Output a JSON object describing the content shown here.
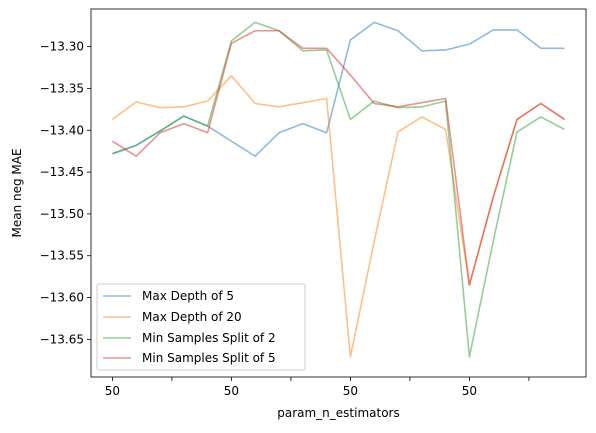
{
  "chart_data": {
    "type": "line",
    "xlabel": "param_n_estimators",
    "ylabel": "Mean neg MAE",
    "x": [
      0,
      1,
      2,
      3,
      4,
      5,
      6,
      7,
      8,
      9,
      10,
      11,
      12,
      13,
      14,
      15,
      16,
      17,
      18,
      19
    ],
    "xlim": [
      -0.9,
      19.9
    ],
    "xticks": [
      {
        "x": 0,
        "label": "50"
      },
      {
        "x": 2.5,
        "label": ""
      },
      {
        "x": 5,
        "label": "50"
      },
      {
        "x": 7.5,
        "label": ""
      },
      {
        "x": 10,
        "label": "50"
      },
      {
        "x": 12.5,
        "label": ""
      },
      {
        "x": 15,
        "label": "50"
      },
      {
        "x": 17.5,
        "label": ""
      }
    ],
    "ylim": [
      -13.695,
      -13.255
    ],
    "yticks": [
      -13.3,
      -13.35,
      -13.4,
      -13.45,
      -13.5,
      -13.55,
      -13.6,
      -13.65
    ],
    "ytick_labels": [
      "−13.30",
      "−13.35",
      "−13.40",
      "−13.45",
      "−13.50",
      "−13.55",
      "−13.60",
      "−13.65"
    ],
    "legend_position": "lower-left",
    "series": [
      {
        "name": "Max Depth of 5",
        "color": "#1f77b4",
        "values": [
          -13.428,
          -13.418,
          -13.401,
          -13.383,
          -13.395,
          -13.413,
          -13.431,
          -13.403,
          -13.392,
          -13.403,
          -13.292,
          -13.271,
          -13.281,
          -13.305,
          -13.304,
          -13.297,
          -13.28,
          -13.28,
          -13.302,
          -13.302
        ]
      },
      {
        "name": "Max Depth of 20",
        "color": "#ff7f0e",
        "values": [
          -13.387,
          -13.366,
          -13.373,
          -13.372,
          -13.365,
          -13.335,
          -13.368,
          -13.372,
          -13.367,
          -13.362,
          -13.671,
          -13.533,
          -13.402,
          -13.384,
          -13.399,
          -13.585,
          -13.48,
          -13.387,
          -13.368,
          -13.387
        ]
      },
      {
        "name": "Min Samples Split of 2",
        "color": "#2ca02c",
        "values": [
          -13.428,
          -13.418,
          -13.401,
          -13.383,
          -13.395,
          -13.293,
          -13.271,
          -13.281,
          -13.305,
          -13.304,
          -13.387,
          -13.365,
          -13.373,
          -13.372,
          -13.365,
          -13.671,
          -13.533,
          -13.402,
          -13.384,
          -13.399
        ]
      },
      {
        "name": "Min Samples Split of 5",
        "color": "#d62728",
        "values": [
          -13.413,
          -13.431,
          -13.403,
          -13.392,
          -13.403,
          -13.296,
          -13.281,
          -13.281,
          -13.302,
          -13.302,
          -13.334,
          -13.368,
          -13.372,
          -13.367,
          -13.362,
          -13.585,
          -13.48,
          -13.387,
          -13.368,
          -13.387
        ]
      }
    ]
  }
}
